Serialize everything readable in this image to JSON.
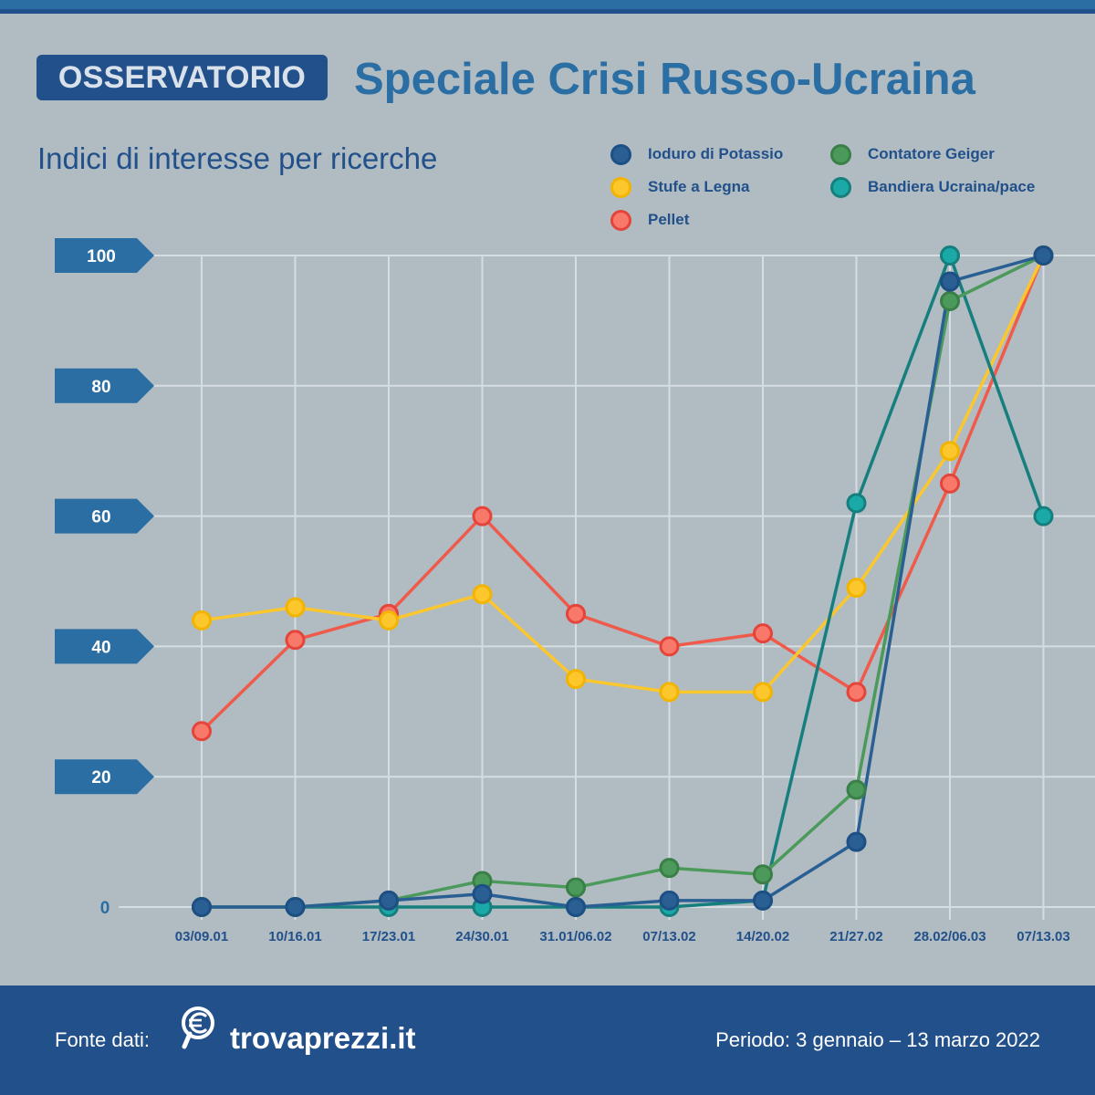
{
  "header": {
    "badge": "OSSERVATORIO",
    "title": "Speciale Crisi Russo-Ucraina",
    "subtitle": "Indici di interesse per ricerche"
  },
  "footer": {
    "source_label": "Fonte dati:",
    "brand": "trovaprezzi.it",
    "brand_icon": "euro-search-icon",
    "period": "Periodo: 3 gennaio – 13 marzo 2022"
  },
  "colors": {
    "background": "#b0bcc2",
    "accent": "#2a6ea3",
    "navy": "#22508a"
  },
  "chart_data": {
    "type": "line",
    "title": "",
    "xlabel": "",
    "ylabel": "",
    "ylim": [
      0,
      100
    ],
    "yticks": [
      0,
      20,
      40,
      60,
      80,
      100
    ],
    "ytick_labels": [
      "0",
      "20",
      "40",
      "60",
      "80",
      "100"
    ],
    "grid": true,
    "legend_position": "top-right",
    "categories": [
      "03/09.01",
      "10/16.01",
      "17/23.01",
      "24/30.01",
      "31.01/06.02",
      "07/13.02",
      "14/20.02",
      "21/27.02",
      "28.02/06.03",
      "07/13.03"
    ],
    "series": [
      {
        "name": "Pellet",
        "color": "#f05a4a",
        "values": [
          27,
          41,
          45,
          60,
          45,
          40,
          42,
          33,
          65,
          100
        ]
      },
      {
        "name": "Stufe a Legna",
        "color": "#fcc72c",
        "values": [
          44,
          46,
          44,
          48,
          35,
          33,
          33,
          49,
          70,
          100
        ]
      },
      {
        "name": "Bandiera Ucraina/pace",
        "color": "#1aa9a6",
        "line_color": "#167f7e",
        "values": [
          0,
          0,
          0,
          0,
          0,
          0,
          1,
          62,
          100,
          60
        ]
      },
      {
        "name": "Contatore Geiger",
        "color": "#4c9a5b",
        "values": [
          0,
          0,
          1,
          4,
          3,
          6,
          5,
          18,
          93,
          100
        ]
      },
      {
        "name": "Ioduro di Potassio",
        "color": "#2a5f94",
        "values": [
          0,
          0,
          1,
          2,
          0,
          1,
          1,
          10,
          96,
          100
        ]
      }
    ],
    "legend_order": [
      "Ioduro di Potassio",
      "Contatore Geiger",
      "Stufe a Legna",
      "Bandiera Ucraina/pace",
      "Pellet"
    ]
  }
}
